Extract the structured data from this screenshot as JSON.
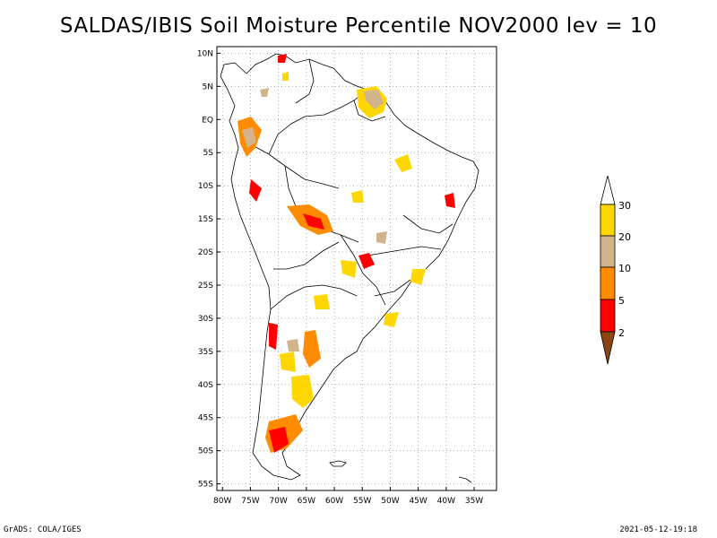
{
  "title": "SALDAS/IBIS Soil Moisture Percentile NOV2000 lev = 10",
  "footer": {
    "left": "GrADS: COLA/IGES",
    "right": "2021-05-12-19:18"
  },
  "map": {
    "lon_range": [
      -81,
      -31
    ],
    "lat_range": [
      -56,
      11
    ],
    "lon_ticks": [
      "80W",
      "75W",
      "70W",
      "65W",
      "60W",
      "55W",
      "50W",
      "45W",
      "40W",
      "35W"
    ],
    "lat_ticks": [
      "10N",
      "5N",
      "EQ",
      "5S",
      "10S",
      "15S",
      "20S",
      "25S",
      "30S",
      "35S",
      "40S",
      "45S",
      "50S",
      "55S"
    ]
  },
  "legend": {
    "labels": [
      "30",
      "20",
      "10",
      "5",
      "2"
    ],
    "colors": {
      "lt2": "#8b4513",
      "2to5": "#ff0000",
      "5to10": "#ff8c00",
      "10to20": "#d2b48c",
      "20to30": "#ffd700",
      "gt30": "#ffffff"
    }
  }
}
